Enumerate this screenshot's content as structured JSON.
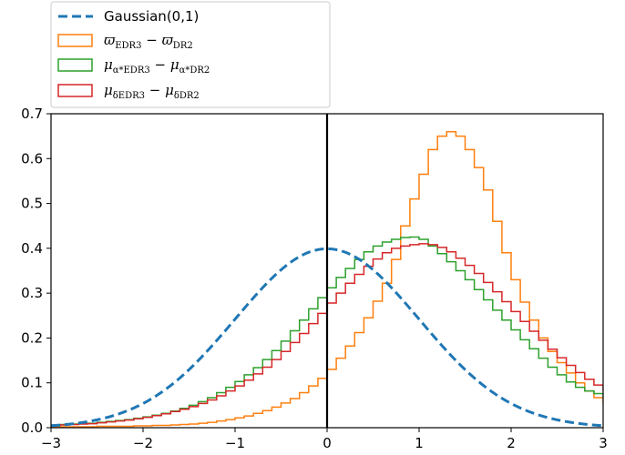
{
  "chart_data": {
    "type": "line",
    "title": "",
    "xlabel": "",
    "ylabel": "",
    "xlim": [
      -3,
      3
    ],
    "ylim": [
      0,
      0.7
    ],
    "xticks": [
      -3,
      -2,
      -1,
      0,
      1,
      2,
      3
    ],
    "xtick_labels": [
      "−3",
      "−2",
      "−1",
      "0",
      "1",
      "2",
      "3"
    ],
    "yticks": [
      0.0,
      0.1,
      0.2,
      0.3,
      0.4,
      0.5,
      0.6,
      0.7
    ],
    "ytick_labels": [
      "0.0",
      "0.1",
      "0.2",
      "0.3",
      "0.4",
      "0.5",
      "0.6",
      "0.7"
    ],
    "grid": false,
    "legend_position": "top-left, above plot",
    "vline_x": 0,
    "bin_edges_start": -3,
    "bin_width": 0.1,
    "series": [
      {
        "name": "Gaussian(0,1)",
        "style": "dashed",
        "color": "#1f77b4",
        "function": "normal_pdf",
        "mean": 0,
        "std": 1
      },
      {
        "name": "ϖEDR3 − ϖDR2",
        "legend": {
          "sym1": "ϖ",
          "sub1": "EDR3",
          "op": "−",
          "sym2": "ϖ",
          "sub2": "DR2"
        },
        "style": "step",
        "color": "#ff7f0e",
        "values": [
          0.002,
          0.002,
          0.002,
          0.002,
          0.002,
          0.003,
          0.003,
          0.003,
          0.003,
          0.004,
          0.004,
          0.005,
          0.005,
          0.006,
          0.007,
          0.008,
          0.01,
          0.012,
          0.015,
          0.018,
          0.022,
          0.026,
          0.032,
          0.038,
          0.046,
          0.055,
          0.065,
          0.078,
          0.093,
          0.11,
          0.13,
          0.155,
          0.182,
          0.212,
          0.245,
          0.282,
          0.322,
          0.375,
          0.45,
          0.51,
          0.565,
          0.62,
          0.65,
          0.66,
          0.65,
          0.62,
          0.58,
          0.53,
          0.46,
          0.39,
          0.33,
          0.28,
          0.24,
          0.2,
          0.17,
          0.145,
          0.122,
          0.1,
          0.082,
          0.067,
          0.055,
          0.045,
          0.037,
          0.031,
          0.026,
          0.022,
          0.019,
          0.016,
          0.014,
          0.012,
          0.01,
          0.009,
          0.008,
          0.007,
          0.006,
          0.005,
          0.005,
          0.004,
          0.004,
          0.003
        ]
      },
      {
        "name": "μα*EDR3 − μα*DR2",
        "legend": {
          "sym1": "μ",
          "sub1": "α*EDR3",
          "op": "−",
          "sym2": "μ",
          "sub2": "α*DR2"
        },
        "style": "step",
        "color": "#2ca02c",
        "values": [
          0.006,
          0.007,
          0.008,
          0.009,
          0.01,
          0.012,
          0.014,
          0.016,
          0.018,
          0.021,
          0.024,
          0.028,
          0.032,
          0.037,
          0.043,
          0.05,
          0.058,
          0.067,
          0.078,
          0.09,
          0.103,
          0.118,
          0.134,
          0.152,
          0.172,
          0.193,
          0.216,
          0.24,
          0.265,
          0.29,
          0.312,
          0.335,
          0.355,
          0.375,
          0.392,
          0.405,
          0.414,
          0.42,
          0.424,
          0.425,
          0.42,
          0.405,
          0.388,
          0.37,
          0.35,
          0.33,
          0.308,
          0.285,
          0.262,
          0.24,
          0.218,
          0.196,
          0.176,
          0.155,
          0.135,
          0.118,
          0.102,
          0.09,
          0.082,
          0.076,
          0.07,
          0.063,
          0.056,
          0.05,
          0.044,
          0.038,
          0.033,
          0.029,
          0.025,
          0.022,
          0.019,
          0.016,
          0.014,
          0.012,
          0.01,
          0.009,
          0.008,
          0.007,
          0.006,
          0.005
        ]
      },
      {
        "name": "μδEDR3 − μδDR2",
        "legend": {
          "sym1": "μ",
          "sub1": "δEDR3",
          "op": "−",
          "sym2": "μ",
          "sub2": "δDR2"
        },
        "style": "step",
        "color": "#d62728",
        "values": [
          0.005,
          0.006,
          0.007,
          0.008,
          0.009,
          0.011,
          0.013,
          0.015,
          0.017,
          0.02,
          0.023,
          0.027,
          0.031,
          0.036,
          0.041,
          0.047,
          0.054,
          0.062,
          0.071,
          0.082,
          0.093,
          0.106,
          0.12,
          0.135,
          0.152,
          0.17,
          0.19,
          0.21,
          0.232,
          0.255,
          0.278,
          0.3,
          0.322,
          0.342,
          0.36,
          0.376,
          0.39,
          0.4,
          0.405,
          0.408,
          0.41,
          0.408,
          0.402,
          0.392,
          0.378,
          0.362,
          0.344,
          0.324,
          0.303,
          0.281,
          0.259,
          0.237,
          0.215,
          0.195,
          0.175,
          0.156,
          0.139,
          0.123,
          0.108,
          0.095,
          0.083,
          0.072,
          0.062,
          0.054,
          0.046,
          0.04,
          0.034,
          0.029,
          0.024,
          0.021,
          0.018,
          0.015,
          0.013,
          0.011,
          0.009,
          0.008,
          0.007,
          0.006,
          0.005,
          0.005
        ]
      }
    ]
  }
}
